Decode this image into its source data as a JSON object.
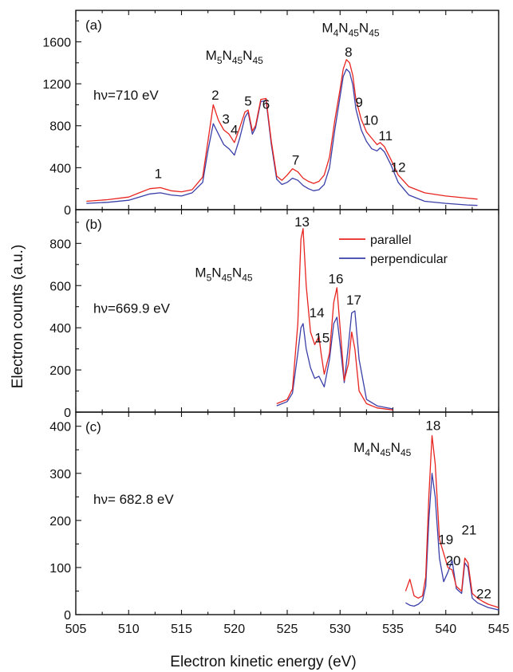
{
  "chart_data": {
    "type": "line",
    "xlabel": "Electron kinetic energy (eV)",
    "ylabel": "Electron counts (a.u.)",
    "xlim": [
      505,
      545
    ],
    "xticks": [
      505,
      510,
      515,
      520,
      525,
      530,
      535,
      540,
      545
    ],
    "colors": {
      "parallel": "#e8241f",
      "perpendicular": "#3a3fa8"
    },
    "legend": {
      "placement": "top-right of panel (b)",
      "entries": [
        "parallel",
        "perpendicular"
      ]
    },
    "panels": [
      {
        "id": "a",
        "tag": "(a)",
        "photon_label": "hν=710 eV",
        "ylim": [
          0,
          1900
        ],
        "yticks": [
          0,
          400,
          800,
          1200,
          1600
        ],
        "group_labels": [
          {
            "base": "M",
            "sub1": "5",
            "mid1": "N",
            "sub2": "45",
            "mid2": "N",
            "sub3": "45",
            "x": 520,
            "y": 1430
          },
          {
            "base": "M",
            "sub1": "4",
            "mid1": "N",
            "sub2": "45",
            "mid2": "N",
            "sub3": "45",
            "x": 531,
            "y": 1690
          }
        ],
        "peak_labels": [
          {
            "text": "1",
            "x": 512.8,
            "y": 300
          },
          {
            "text": "2",
            "x": 518.2,
            "y": 1050
          },
          {
            "text": "3",
            "x": 519.2,
            "y": 820
          },
          {
            "text": "4",
            "x": 520.0,
            "y": 720
          },
          {
            "text": "5",
            "x": 521.3,
            "y": 990
          },
          {
            "text": "6",
            "x": 523.0,
            "y": 960
          },
          {
            "text": "7",
            "x": 525.8,
            "y": 430
          },
          {
            "text": "8",
            "x": 530.8,
            "y": 1460
          },
          {
            "text": "9",
            "x": 531.8,
            "y": 980
          },
          {
            "text": "10",
            "x": 532.9,
            "y": 810
          },
          {
            "text": "11",
            "x": 534.3,
            "y": 660
          },
          {
            "text": "12",
            "x": 535.5,
            "y": 360
          }
        ],
        "series": [
          {
            "name": "parallel",
            "x": [
              506,
              508,
              510,
              511,
              512,
              513,
              514,
              515,
              516,
              517,
              517.5,
              518,
              518.5,
              519,
              519.5,
              520,
              520.5,
              521,
              521.3,
              521.7,
              522,
              522.5,
              523,
              523.5,
              524,
              524.5,
              525,
              525.5,
              526,
              526.5,
              527,
              527.5,
              528,
              528.5,
              529,
              529.5,
              530,
              530.3,
              530.6,
              530.9,
              531.2,
              531.5,
              532,
              532.5,
              533,
              533.5,
              533.8,
              534.2,
              534.8,
              535.5,
              536.5,
              538,
              540,
              542,
              543
            ],
            "y": [
              80,
              95,
              120,
              160,
              200,
              210,
              180,
              170,
              190,
              310,
              650,
              1000,
              850,
              760,
              720,
              640,
              780,
              930,
              950,
              750,
              800,
              1050,
              1060,
              650,
              320,
              280,
              330,
              390,
              360,
              300,
              270,
              250,
              270,
              330,
              500,
              850,
              1150,
              1340,
              1430,
              1400,
              1280,
              1050,
              860,
              740,
              680,
              620,
              640,
              600,
              480,
              330,
              220,
              160,
              130,
              110,
              100
            ]
          },
          {
            "name": "perpendicular",
            "x": [
              506,
              508,
              510,
              511,
              512,
              513,
              514,
              515,
              516,
              517,
              517.5,
              518,
              518.5,
              519,
              519.5,
              520,
              520.5,
              521,
              521.3,
              521.7,
              522,
              522.5,
              523,
              523.5,
              524,
              524.5,
              525,
              525.5,
              526,
              526.5,
              527,
              527.5,
              528,
              528.5,
              529,
              529.5,
              530,
              530.3,
              530.6,
              530.9,
              531.2,
              531.5,
              532,
              532.5,
              533,
              533.5,
              533.8,
              534.2,
              534.8,
              535.5,
              536.5,
              538,
              540,
              542,
              543
            ],
            "y": [
              60,
              70,
              90,
              120,
              150,
              160,
              140,
              130,
              160,
              260,
              560,
              820,
              720,
              620,
              580,
              520,
              680,
              880,
              930,
              720,
              780,
              1030,
              1040,
              620,
              290,
              240,
              260,
              300,
              280,
              230,
              200,
              180,
              190,
              240,
              400,
              760,
              1080,
              1270,
              1340,
              1310,
              1190,
              960,
              760,
              650,
              580,
              560,
              590,
              550,
              430,
              260,
              140,
              80,
              60,
              45,
              40
            ]
          }
        ]
      },
      {
        "id": "b",
        "tag": "(b)",
        "photon_label": "hν=669.9 eV",
        "ylim": [
          0,
          960
        ],
        "yticks": [
          0,
          200,
          400,
          600,
          800
        ],
        "group_labels": [
          {
            "base": "M",
            "sub1": "5",
            "mid1": "N",
            "sub2": "45",
            "mid2": "N",
            "sub3": "45",
            "x": 519,
            "y": 640
          }
        ],
        "peak_labels": [
          {
            "text": "13",
            "x": 526.4,
            "y": 880
          },
          {
            "text": "14",
            "x": 527.8,
            "y": 450
          },
          {
            "text": "15",
            "x": 528.3,
            "y": 330
          },
          {
            "text": "16",
            "x": 529.6,
            "y": 610
          },
          {
            "text": "17",
            "x": 531.3,
            "y": 510
          }
        ],
        "series": [
          {
            "name": "parallel",
            "x": [
              524,
              525,
              525.5,
              526,
              526.3,
              526.5,
              526.8,
              527.2,
              527.6,
              528,
              528.2,
              528.5,
              529,
              529.4,
              529.7,
              530,
              530.4,
              530.8,
              531.1,
              531.4,
              531.8,
              532.5,
              533.5,
              535
            ],
            "y": [
              40,
              60,
              110,
              420,
              820,
              870,
              600,
              380,
              320,
              360,
              280,
              180,
              280,
              520,
              590,
              400,
              150,
              230,
              380,
              300,
              100,
              40,
              20,
              10
            ]
          },
          {
            "name": "perpendicular",
            "x": [
              524,
              525,
              525.5,
              526,
              526.3,
              526.5,
              526.8,
              527.2,
              527.6,
              528,
              528.2,
              528.5,
              529,
              529.4,
              529.7,
              530,
              530.4,
              530.8,
              531.1,
              531.4,
              531.8,
              532.5,
              533.5,
              535
            ],
            "y": [
              30,
              50,
              90,
              280,
              400,
              420,
              300,
              210,
              160,
              170,
              150,
              120,
              250,
              420,
              450,
              320,
              140,
              320,
              470,
              480,
              250,
              60,
              30,
              15
            ]
          }
        ]
      },
      {
        "id": "c",
        "tag": "(c)",
        "photon_label": "hν= 682.8 eV",
        "ylim": [
          0,
          430
        ],
        "yticks": [
          0,
          100,
          200,
          300,
          400
        ],
        "group_labels": [
          {
            "base": "M",
            "sub1": "4",
            "mid1": "N",
            "sub2": "45",
            "mid2": "N",
            "sub3": "45",
            "x": 534,
            "y": 345
          }
        ],
        "peak_labels": [
          {
            "text": "18",
            "x": 538.8,
            "y": 392
          },
          {
            "text": "19",
            "x": 540.0,
            "y": 150
          },
          {
            "text": "20",
            "x": 540.7,
            "y": 105
          },
          {
            "text": "21",
            "x": 542.2,
            "y": 170
          },
          {
            "text": "22",
            "x": 543.6,
            "y": 35
          }
        ],
        "series": [
          {
            "name": "parallel",
            "x": [
              536.2,
              536.6,
              537,
              537.4,
              537.8,
              538.1,
              538.4,
              538.7,
              539,
              539.4,
              539.8,
              540.2,
              540.6,
              541,
              541.5,
              541.8,
              542.1,
              542.5,
              543,
              543.5,
              544,
              545
            ],
            "y": [
              50,
              75,
              40,
              35,
              40,
              80,
              250,
              380,
              320,
              160,
              130,
              100,
              95,
              60,
              50,
              120,
              110,
              45,
              35,
              28,
              22,
              15
            ]
          },
          {
            "name": "perpendicular",
            "x": [
              536.2,
              536.6,
              537,
              537.4,
              537.8,
              538.1,
              538.4,
              538.7,
              539,
              539.4,
              539.8,
              540.2,
              540.6,
              541,
              541.5,
              541.8,
              542.1,
              542.5,
              543,
              543.5,
              544,
              545
            ],
            "y": [
              25,
              20,
              18,
              22,
              30,
              60,
              200,
              300,
              250,
              120,
              70,
              90,
              115,
              55,
              45,
              110,
              100,
              35,
              25,
              20,
              15,
              10
            ]
          }
        ]
      }
    ]
  }
}
